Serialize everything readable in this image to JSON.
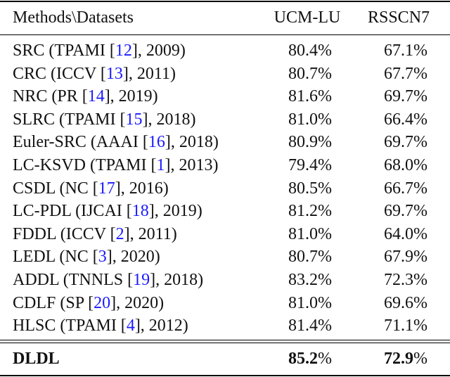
{
  "table": {
    "header": [
      "Methods\\Datasets",
      "UCM-LU",
      "RSSCN7"
    ],
    "rows": [
      {
        "method": [
          "SRC (TPAMI [",
          "12",
          "], 2009)"
        ],
        "values": [
          "80.4%",
          "67.1%"
        ]
      },
      {
        "method": [
          "CRC (ICCV [",
          "13",
          "], 2011)"
        ],
        "values": [
          "80.7%",
          "67.7%"
        ]
      },
      {
        "method": [
          "NRC (PR [",
          "14",
          "], 2019)"
        ],
        "values": [
          "81.6%",
          "69.7%"
        ]
      },
      {
        "method": [
          "SLRC (TPAMI [",
          "15",
          "], 2018)"
        ],
        "values": [
          "81.0%",
          "66.4%"
        ]
      },
      {
        "method": [
          "Euler-SRC (AAAI [",
          "16",
          "], 2018)"
        ],
        "values": [
          "80.9%",
          "69.7%"
        ]
      },
      {
        "method": [
          "LC-KSVD (TPAMI [",
          "1",
          "], 2013)"
        ],
        "values": [
          "79.4%",
          "68.0%"
        ]
      },
      {
        "method": [
          "CSDL (NC [",
          "17",
          "], 2016)"
        ],
        "values": [
          "80.5%",
          "66.7%"
        ]
      },
      {
        "method": [
          "LC-PDL (IJCAI [",
          "18",
          "], 2019)"
        ],
        "values": [
          "81.2%",
          "69.7%"
        ]
      },
      {
        "method": [
          "FDDL (ICCV [",
          "2",
          "], 2011)"
        ],
        "values": [
          "81.0%",
          "64.0%"
        ]
      },
      {
        "method": [
          "LEDL (NC [",
          "3",
          "], 2020)"
        ],
        "values": [
          "80.7%",
          "67.9%"
        ]
      },
      {
        "method": [
          "ADDL (TNNLS [",
          "19",
          "], 2018)"
        ],
        "values": [
          "83.2%",
          "72.3%"
        ]
      },
      {
        "method": [
          "CDLF (SP [",
          "20",
          "], 2020)"
        ],
        "values": [
          "81.0%",
          "69.6%"
        ]
      },
      {
        "method": [
          "HLSC (TPAMI [",
          "4",
          "], 2012)"
        ],
        "values": [
          "81.4%",
          "71.1%"
        ]
      }
    ],
    "best": {
      "method": "DLDL",
      "values": [
        [
          "85.2",
          "%"
        ],
        [
          "72.9",
          "%"
        ]
      ]
    }
  }
}
